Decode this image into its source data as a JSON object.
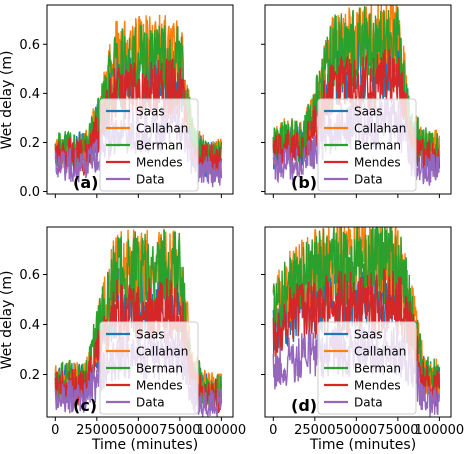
{
  "figure": {
    "ylabel": "Wet delay (m)",
    "xlabel": "Time (minutes)"
  },
  "colors": {
    "Saas": "#1f77b4",
    "Callahan": "#ff7f0e",
    "Berman": "#2ca02c",
    "Mendes": "#d62728",
    "Data": "#9467bd"
  },
  "chart_data": [
    {
      "type": "line",
      "panel_label": "(a)",
      "xlim": [
        -5000,
        107000
      ],
      "ylim": [
        -0.01,
        0.76
      ],
      "xticks": [
        0,
        25000,
        50000,
        75000,
        100000
      ],
      "xtick_labels": [
        "",
        "",
        "",
        "",
        ""
      ],
      "yticks": [
        0.0,
        0.2,
        0.4,
        0.6
      ],
      "ytick_labels": [
        "0.0",
        "0.2",
        "0.4",
        "0.6"
      ],
      "legend": "lower center",
      "grid": false,
      "levels": {
        "x": [
          0,
          8000,
          18000,
          28000,
          36000,
          75000,
          83000,
          91000,
          100000
        ],
        "Saas": [
          0.16,
          0.17,
          0.16,
          0.3,
          0.45,
          0.47,
          0.18,
          0.13,
          0.13
        ],
        "Callahan": [
          0.16,
          0.17,
          0.16,
          0.35,
          0.55,
          0.59,
          0.2,
          0.14,
          0.14
        ],
        "Berman": [
          0.16,
          0.17,
          0.16,
          0.33,
          0.52,
          0.56,
          0.19,
          0.14,
          0.14
        ],
        "Mendes": [
          0.14,
          0.15,
          0.14,
          0.26,
          0.4,
          0.42,
          0.16,
          0.12,
          0.12
        ],
        "Data": [
          0.1,
          0.11,
          0.1,
          0.17,
          0.24,
          0.26,
          0.11,
          0.08,
          0.08
        ]
      },
      "series": [
        {
          "name": "Saas"
        },
        {
          "name": "Callahan"
        },
        {
          "name": "Berman"
        },
        {
          "name": "Mendes"
        },
        {
          "name": "Data"
        }
      ]
    },
    {
      "type": "line",
      "panel_label": "(b)",
      "xlim": [
        -5000,
        107000
      ],
      "ylim": [
        -0.01,
        0.76
      ],
      "xticks": [
        0,
        25000,
        50000,
        75000,
        100000
      ],
      "xtick_labels": [
        "",
        "",
        "",
        "",
        ""
      ],
      "yticks": [
        0.0,
        0.2,
        0.4,
        0.6
      ],
      "ytick_labels": [
        "",
        "",
        "",
        ""
      ],
      "legend": "lower center",
      "grid": false,
      "levels": {
        "x": [
          0,
          8000,
          18000,
          28000,
          36000,
          75000,
          83000,
          91000,
          100000
        ],
        "Saas": [
          0.17,
          0.2,
          0.18,
          0.36,
          0.48,
          0.52,
          0.22,
          0.16,
          0.15
        ],
        "Callahan": [
          0.18,
          0.22,
          0.2,
          0.42,
          0.58,
          0.64,
          0.25,
          0.18,
          0.17
        ],
        "Berman": [
          0.18,
          0.22,
          0.2,
          0.41,
          0.57,
          0.63,
          0.25,
          0.18,
          0.17
        ],
        "Mendes": [
          0.15,
          0.18,
          0.16,
          0.31,
          0.42,
          0.46,
          0.2,
          0.14,
          0.13
        ],
        "Data": [
          0.1,
          0.12,
          0.11,
          0.2,
          0.26,
          0.29,
          0.13,
          0.09,
          0.09
        ]
      },
      "series": [
        {
          "name": "Saas"
        },
        {
          "name": "Callahan"
        },
        {
          "name": "Berman"
        },
        {
          "name": "Mendes"
        },
        {
          "name": "Data"
        }
      ]
    },
    {
      "type": "line",
      "panel_label": "(c)",
      "xlim": [
        -5000,
        107000
      ],
      "ylim": [
        0.03,
        0.79
      ],
      "xticks": [
        0,
        25000,
        50000,
        75000,
        100000
      ],
      "xtick_labels": [
        "0",
        "25000",
        "50000",
        "75000",
        "100000"
      ],
      "yticks": [
        0.2,
        0.4,
        0.6
      ],
      "ytick_labels": [
        "0.2",
        "0.4",
        "0.6"
      ],
      "legend": "lower center",
      "grid": false,
      "levels": {
        "x": [
          0,
          8000,
          18000,
          28000,
          36000,
          75000,
          83000,
          91000,
          100000
        ],
        "Saas": [
          0.15,
          0.17,
          0.16,
          0.36,
          0.49,
          0.5,
          0.19,
          0.13,
          0.12
        ],
        "Callahan": [
          0.16,
          0.18,
          0.17,
          0.44,
          0.62,
          0.63,
          0.21,
          0.14,
          0.13
        ],
        "Berman": [
          0.16,
          0.18,
          0.17,
          0.43,
          0.61,
          0.62,
          0.21,
          0.14,
          0.13
        ],
        "Mendes": [
          0.14,
          0.15,
          0.14,
          0.33,
          0.45,
          0.46,
          0.17,
          0.12,
          0.11
        ],
        "Data": [
          0.1,
          0.11,
          0.1,
          0.21,
          0.27,
          0.28,
          0.12,
          0.09,
          0.08
        ]
      },
      "series": [
        {
          "name": "Saas"
        },
        {
          "name": "Callahan"
        },
        {
          "name": "Berman"
        },
        {
          "name": "Mendes"
        },
        {
          "name": "Data"
        }
      ]
    },
    {
      "type": "line",
      "panel_label": "(d)",
      "xlim": [
        -5000,
        107000
      ],
      "ylim": [
        0.03,
        0.79
      ],
      "xticks": [
        0,
        25000,
        50000,
        75000,
        100000
      ],
      "xtick_labels": [
        "0",
        "25000",
        "50000",
        "75000",
        "100000"
      ],
      "yticks": [
        0.2,
        0.4,
        0.6
      ],
      "ytick_labels": [
        "",
        "",
        ""
      ],
      "legend": "lower center",
      "grid": false,
      "levels": {
        "x": [
          0,
          8000,
          18000,
          28000,
          36000,
          75000,
          83000,
          91000,
          100000
        ],
        "Saas": [
          0.38,
          0.45,
          0.48,
          0.5,
          0.52,
          0.53,
          0.4,
          0.18,
          0.16
        ],
        "Callahan": [
          0.44,
          0.55,
          0.6,
          0.63,
          0.65,
          0.66,
          0.47,
          0.2,
          0.18
        ],
        "Berman": [
          0.44,
          0.54,
          0.59,
          0.62,
          0.64,
          0.65,
          0.47,
          0.2,
          0.18
        ],
        "Mendes": [
          0.35,
          0.42,
          0.45,
          0.47,
          0.48,
          0.49,
          0.37,
          0.16,
          0.14
        ],
        "Data": [
          0.22,
          0.25,
          0.27,
          0.28,
          0.29,
          0.3,
          0.23,
          0.1,
          0.09
        ]
      },
      "series": [
        {
          "name": "Saas"
        },
        {
          "name": "Callahan"
        },
        {
          "name": "Berman"
        },
        {
          "name": "Mendes"
        },
        {
          "name": "Data"
        }
      ]
    }
  ]
}
